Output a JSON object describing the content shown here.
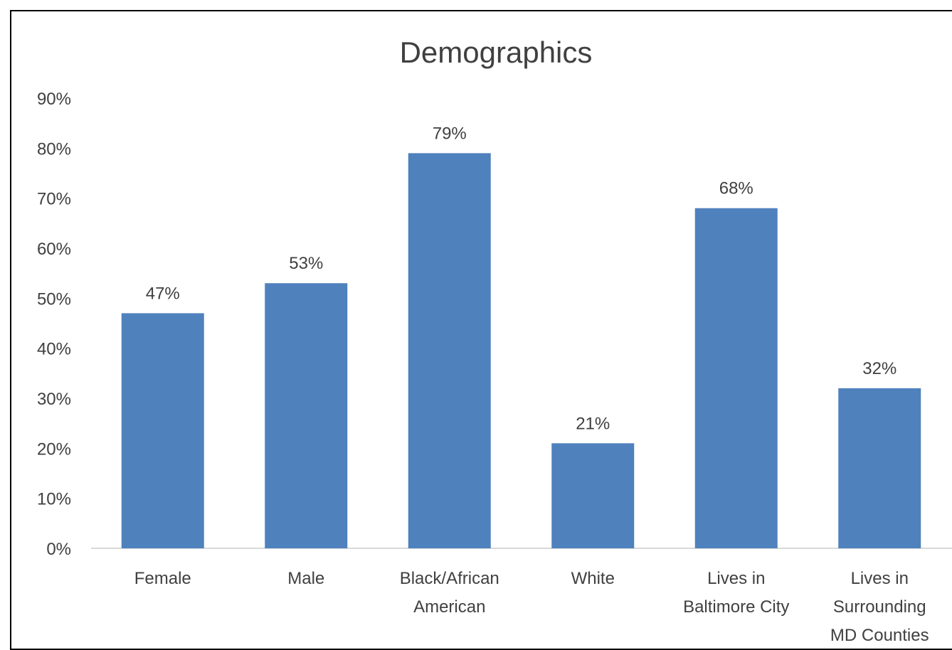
{
  "chart_data": {
    "type": "bar",
    "title": "Demographics",
    "xlabel": "",
    "ylabel": "",
    "categories": [
      [
        "Female"
      ],
      [
        "Male"
      ],
      [
        "Black/African",
        "American"
      ],
      [
        "White"
      ],
      [
        "Lives in",
        "Baltimore City"
      ],
      [
        "Lives in",
        "Surrounding",
        "MD Counties"
      ]
    ],
    "values": [
      47,
      53,
      79,
      21,
      68,
      32
    ],
    "value_labels": [
      "47%",
      "53%",
      "79%",
      "21%",
      "68%",
      "32%"
    ],
    "ylim": [
      0,
      90
    ],
    "yticks": [
      0,
      10,
      20,
      30,
      40,
      50,
      60,
      70,
      80,
      90
    ],
    "ytick_labels": [
      "0%",
      "10%",
      "20%",
      "30%",
      "40%",
      "50%",
      "60%",
      "70%",
      "80%",
      "90%"
    ],
    "grid": false,
    "legend": "none",
    "colors": {
      "bar": "#4f81bd",
      "text": "#404040",
      "axis": "#d9d9d9"
    }
  }
}
